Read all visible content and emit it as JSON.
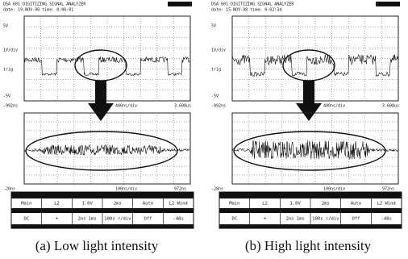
{
  "panels": [
    {
      "header": {
        "title": "DSA 601 DIGITIZING SIGNAL ANALYZER",
        "datetime": "date: 19-NOV-98 time: 0:06:01"
      },
      "top": {
        "y_labels": [
          "5V",
          "1V/div",
          "trig",
          "-5V"
        ],
        "x_labels": [
          "-992ns",
          "400ns/div",
          "3.608us"
        ]
      },
      "bottom": {
        "x_labels": [
          "-20ns",
          "100ns/div",
          "972ns"
        ]
      },
      "menu": {
        "row1": [
          "Main",
          "L2",
          "1.0V",
          "2ms",
          "Auto",
          "L2 Wind"
        ],
        "row2": [
          "DC",
          "+",
          "2ns 1ms",
          "100s r/div",
          "Off",
          "-48s"
        ]
      },
      "caption": "(a) Low light intensity"
    },
    {
      "header": {
        "title": "DSA 601 DIGITIZING SIGNAL ANALYZER",
        "datetime": "date: 15-NOV-98 time: 0:02:34"
      },
      "top": {
        "y_labels": [
          "5V",
          "1V/div",
          "trig",
          "-5V"
        ],
        "x_labels": [
          "-992ns",
          "400ns/div",
          "3.608us"
        ]
      },
      "bottom": {
        "x_labels": [
          "-28ns",
          "100ns/div",
          "972ns"
        ]
      },
      "menu": {
        "row1": [
          "Main",
          "L2",
          "1.0V",
          "2ms",
          "Auto",
          "L2 Wind"
        ],
        "row2": [
          "DC",
          "+",
          "2ns 1ms",
          "100s r/div",
          "Off",
          "-48s"
        ]
      },
      "caption": "(b) High light intensity"
    }
  ]
}
